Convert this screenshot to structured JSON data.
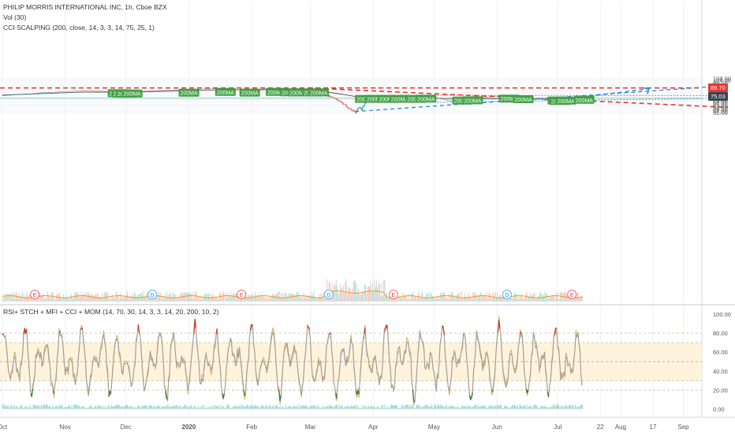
{
  "legend": {
    "main_title": "PHILIP MORRIS INTERNATIONAL INC, 1h, Cboe BZX",
    "volume": "Vol (30)",
    "cci": "CCI SCALPING (200, close, 14, 3, 3, 14, 75, 25, 1)"
  },
  "oscillator_title": "RSI+ STCH + MFI + CCI + MOM (14, 70, 30, 14, 3, 3, 14, 20, 200, 10, 2)",
  "price_labels": {
    "resistance": "89.70",
    "last": "75.03"
  },
  "colors": {
    "up": "#26a69a",
    "down": "#ef5350",
    "ma": "#555555",
    "ma_tag": "#43a047",
    "resistance": "#e53935",
    "trend_blue": "#1e88e5",
    "support": "#66bb6a",
    "osc_line": "#9e9e9e",
    "osc_band": "#fff3dc",
    "osc_ob": "#c0392b",
    "osc_os": "#2e7d32",
    "last_price": "#37474f"
  },
  "chart_data": [
    {
      "type": "candlestick",
      "title": "PHILIP MORRIS INTERNATIONAL INC, 1h, Cboe BZX",
      "x_axis_ticks": [
        "Oct",
        "Nov",
        "Dec",
        "2020",
        "Feb",
        "Mar",
        "Apr",
        "May",
        "Jun",
        "Jul",
        "22",
        "Aug",
        "17",
        "Sep"
      ],
      "x_axis_values": [
        1,
        32,
        62,
        93,
        124,
        153,
        184,
        214,
        245,
        275,
        296,
        306,
        322,
        337
      ],
      "y_axis_ticks": [
        108.0,
        104.0,
        99.0,
        94.0,
        89.7,
        86.0,
        82.0,
        78.0,
        75.03,
        74.0,
        71.0,
        68.0,
        65.0,
        62.0,
        59.5,
        57.0,
        55.0
      ],
      "y_axis_labels": [
        "108.00",
        "104.00",
        "99.00",
        "94.00",
        "89.70",
        "86.00",
        "82.00",
        "78.00",
        "75.03",
        "74.00",
        "71.00",
        "68.00",
        "65.00",
        "62.00",
        "59.50",
        "57.00",
        "55.00"
      ],
      "ylim": [
        54,
        110
      ],
      "close_path": [
        [
          1,
          77.2
        ],
        [
          8,
          79.0
        ],
        [
          14,
          79.5
        ],
        [
          20,
          81.8
        ],
        [
          26,
          82.6
        ],
        [
          32,
          83.6
        ],
        [
          38,
          84.6
        ],
        [
          44,
          84.9
        ],
        [
          50,
          84.3
        ],
        [
          56,
          82.8
        ],
        [
          62,
          82.5
        ],
        [
          66,
          83.6
        ],
        [
          72,
          84.4
        ],
        [
          78,
          85.2
        ],
        [
          84,
          85.8
        ],
        [
          90,
          86.6
        ],
        [
          96,
          87.5
        ],
        [
          100,
          87.9
        ],
        [
          106,
          88.6
        ],
        [
          110,
          89.0
        ],
        [
          114,
          88.4
        ],
        [
          118,
          85.8
        ],
        [
          120,
          84.6
        ],
        [
          124,
          85.2
        ],
        [
          128,
          87.6
        ],
        [
          132,
          88.8
        ],
        [
          136,
          88.4
        ],
        [
          140,
          86.2
        ],
        [
          144,
          85.0
        ],
        [
          148,
          84.6
        ],
        [
          152,
          87.8
        ],
        [
          155,
          85.8
        ],
        [
          157,
          82.5
        ],
        [
          160,
          78.6
        ],
        [
          163,
          74.5
        ],
        [
          166,
          71.0
        ],
        [
          169,
          66.0
        ],
        [
          171,
          61.5
        ],
        [
          173,
          58.2
        ],
        [
          175,
          56.3
        ],
        [
          177,
          62.5
        ],
        [
          178,
          58.8
        ],
        [
          180,
          69.2
        ],
        [
          182,
          70.4
        ],
        [
          186,
          73.5
        ],
        [
          190,
          76.2
        ],
        [
          194,
          75.8
        ],
        [
          198,
          76.8
        ],
        [
          202,
          75.2
        ],
        [
          206,
          76.0
        ],
        [
          210,
          75.5
        ],
        [
          214,
          74.7
        ],
        [
          216,
          72.8
        ],
        [
          218,
          72.2
        ],
        [
          220,
          70.6
        ],
        [
          223,
          69.3
        ],
        [
          226,
          68.5
        ],
        [
          230,
          68.4
        ],
        [
          234,
          71.5
        ],
        [
          238,
          74.4
        ],
        [
          242,
          75.4
        ],
        [
          246,
          77.0
        ],
        [
          250,
          75.6
        ],
        [
          254,
          74.3
        ],
        [
          258,
          72.9
        ],
        [
          262,
          72.0
        ],
        [
          266,
          72.3
        ],
        [
          270,
          70.2
        ],
        [
          272,
          70.6
        ],
        [
          275,
          71.8
        ],
        [
          278,
          71.6
        ],
        [
          281,
          73.4
        ],
        [
          284,
          74.9
        ],
        [
          286,
          75.3
        ],
        [
          287,
          75.03
        ]
      ],
      "moving_average": [
        [
          1,
          78.0
        ],
        [
          20,
          80.2
        ],
        [
          40,
          82.5
        ],
        [
          62,
          82.7
        ],
        [
          80,
          83.8
        ],
        [
          100,
          85.4
        ],
        [
          120,
          86.6
        ],
        [
          140,
          86.3
        ],
        [
          152,
          85.6
        ],
        [
          160,
          83.2
        ],
        [
          168,
          79.5
        ],
        [
          175,
          76.0
        ],
        [
          182,
          74.0
        ],
        [
          192,
          73.5
        ],
        [
          205,
          73.4
        ],
        [
          215,
          73.1
        ],
        [
          225,
          72.4
        ],
        [
          240,
          72.3
        ],
        [
          255,
          72.4
        ],
        [
          270,
          72.2
        ],
        [
          287,
          72.7
        ]
      ],
      "ma_tags": [
        {
          "x": 53,
          "y": 79.6,
          "label": "200MA"
        },
        {
          "x": 55,
          "y": 79.2,
          "label": "200MA"
        },
        {
          "x": 57,
          "y": 79.0,
          "label": "200MA"
        },
        {
          "x": 60,
          "y": 79.2,
          "label": "200MA"
        },
        {
          "x": 88,
          "y": 80.4,
          "label": "200MA"
        },
        {
          "x": 106,
          "y": 81.6,
          "label": "200MA"
        },
        {
          "x": 118,
          "y": 80.6,
          "label": "200MA"
        },
        {
          "x": 131,
          "y": 81.6,
          "label": "200MA"
        },
        {
          "x": 138,
          "y": 81.0,
          "label": "200MA"
        },
        {
          "x": 142,
          "y": 80.9,
          "label": "200MA"
        },
        {
          "x": 149,
          "y": 80.8,
          "label": "200MA"
        },
        {
          "x": 152,
          "y": 80.9,
          "label": "200MA"
        },
        {
          "x": 175,
          "y": 71.1,
          "label": "200MA"
        },
        {
          "x": 180,
          "y": 71.3,
          "label": "200MA"
        },
        {
          "x": 186,
          "y": 71.2,
          "label": "200MA"
        },
        {
          "x": 192,
          "y": 71.3,
          "label": "200MA"
        },
        {
          "x": 200,
          "y": 71.1,
          "label": "200MA"
        },
        {
          "x": 205,
          "y": 71.5,
          "label": "200MA"
        },
        {
          "x": 223,
          "y": 68.9,
          "label": "200MA"
        },
        {
          "x": 228,
          "y": 69.2,
          "label": "200MA"
        },
        {
          "x": 246,
          "y": 71.6,
          "label": "200MA"
        },
        {
          "x": 253,
          "y": 70.8,
          "label": "200MA"
        },
        {
          "x": 270,
          "y": 69.0,
          "label": "200MA"
        },
        {
          "x": 271,
          "y": 68.3,
          "label": "200MA"
        },
        {
          "x": 274,
          "y": 68.8,
          "label": "200MA"
        },
        {
          "x": 283,
          "y": 69.9,
          "label": "200MA"
        }
      ],
      "lines": {
        "resistance": {
          "y": 89.7
        },
        "descending_trend": [
          [
            152,
            89.7
          ],
          [
            359,
            61.2
          ]
        ],
        "upper_triangle": [
          [
            200,
            77.6
          ],
          [
            355,
            77.3
          ]
        ],
        "horizontal_level": {
          "y": 73.0
        },
        "ascending_trend": [
          [
            175,
            56.3
          ],
          [
            359,
            94.0
          ]
        ],
        "lower_support": [
          [
            214,
            67.6
          ],
          [
            359,
            73.3
          ]
        ],
        "projection_arrow": [
          [
            284,
            73.7
          ],
          [
            320,
            88.3
          ]
        ]
      },
      "events": [
        {
          "x": 17,
          "label": "E"
        },
        {
          "x": 75,
          "label": "D"
        },
        {
          "x": 119,
          "label": "E"
        },
        {
          "x": 162,
          "label": "D"
        },
        {
          "x": 194,
          "label": "E"
        },
        {
          "x": 250,
          "label": "D"
        },
        {
          "x": 282,
          "label": "E"
        }
      ]
    },
    {
      "type": "line",
      "title": "RSI+ STCH + MFI + CCI + MOM (14, 70, 30, 14, 3, 3, 14, 20, 200, 10, 2)",
      "y_axis_ticks": [
        100,
        80,
        60,
        40,
        20,
        0
      ],
      "y_axis_labels": [
        "100.00",
        "80.00",
        "60.00",
        "40.00",
        "20.00",
        "0.00"
      ],
      "ylim": [
        -8,
        108
      ],
      "bands": [
        80,
        70,
        50,
        30,
        20
      ]
    }
  ]
}
